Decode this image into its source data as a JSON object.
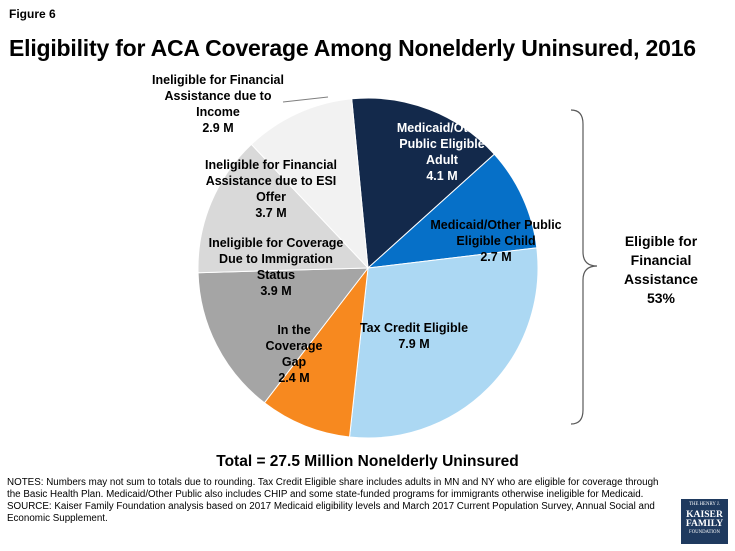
{
  "figure_label": "Figure 6",
  "notes": [
    "NOTES: Numbers may not sum to totals due to rounding. Tax Credit Eligible share includes adults in MN and NY who are eligible for coverage through the Basic Health Plan. Medicaid/Other Public also includes CHIP and some state-funded programs for immigrants otherwise ineligible for Medicaid.",
    "SOURCE: Kaiser Family Foundation analysis based on 2017 Medicaid eligibility levels and March 2017 Current Population Survey, Annual Social and Economic Supplement."
  ],
  "logo": {
    "line1": "THE HENRY J.",
    "line2": "KAISER",
    "line3": "FAMILY",
    "line4": "FOUNDATION"
  },
  "bracket_label": [
    "Eligible for",
    "Financial",
    "Assistance",
    "53%"
  ],
  "chart_data": {
    "type": "pie",
    "title": "Eligibility for ACA Coverage Among Nonelderly Uninsured, 2016",
    "total_label": "Total = 27.5 Million Nonelderly Uninsured",
    "units": "M",
    "slices": [
      {
        "label": [
          "Medicaid/Other",
          "Public Eligible",
          "Adult"
        ],
        "value": 4.1,
        "value_label": "4.1 M",
        "color": "#13294b",
        "text_color": "#ffffff"
      },
      {
        "label": [
          "Medicaid/Other Public",
          "Eligible Child"
        ],
        "value": 2.7,
        "value_label": "2.7 M",
        "color": "#0670c8",
        "text_color": "#000000"
      },
      {
        "label": [
          "Tax Credit Eligible"
        ],
        "value": 7.9,
        "value_label": "7.9 M",
        "color": "#acd8f3",
        "text_color": "#000000"
      },
      {
        "label": [
          "In the",
          "Coverage",
          "Gap"
        ],
        "value": 2.4,
        "value_label": "2.4 M",
        "color": "#f7891f",
        "text_color": "#000000"
      },
      {
        "label": [
          "Ineligible for Coverage",
          "Due to Immigration",
          "Status"
        ],
        "value": 3.9,
        "value_label": "3.9 M",
        "color": "#a5a5a5",
        "text_color": "#000000"
      },
      {
        "label": [
          "Ineligible for Financial",
          "Assistance due to ESI",
          "Offer"
        ],
        "value": 3.7,
        "value_label": "3.7 M",
        "color": "#d9d9d9",
        "text_color": "#000000"
      },
      {
        "label": [
          "Ineligible for Financial",
          "Assistance due to",
          "Income"
        ],
        "value": 2.9,
        "value_label": "2.9 M",
        "color": "#f2f2f2",
        "text_color": "#000000"
      }
    ]
  }
}
